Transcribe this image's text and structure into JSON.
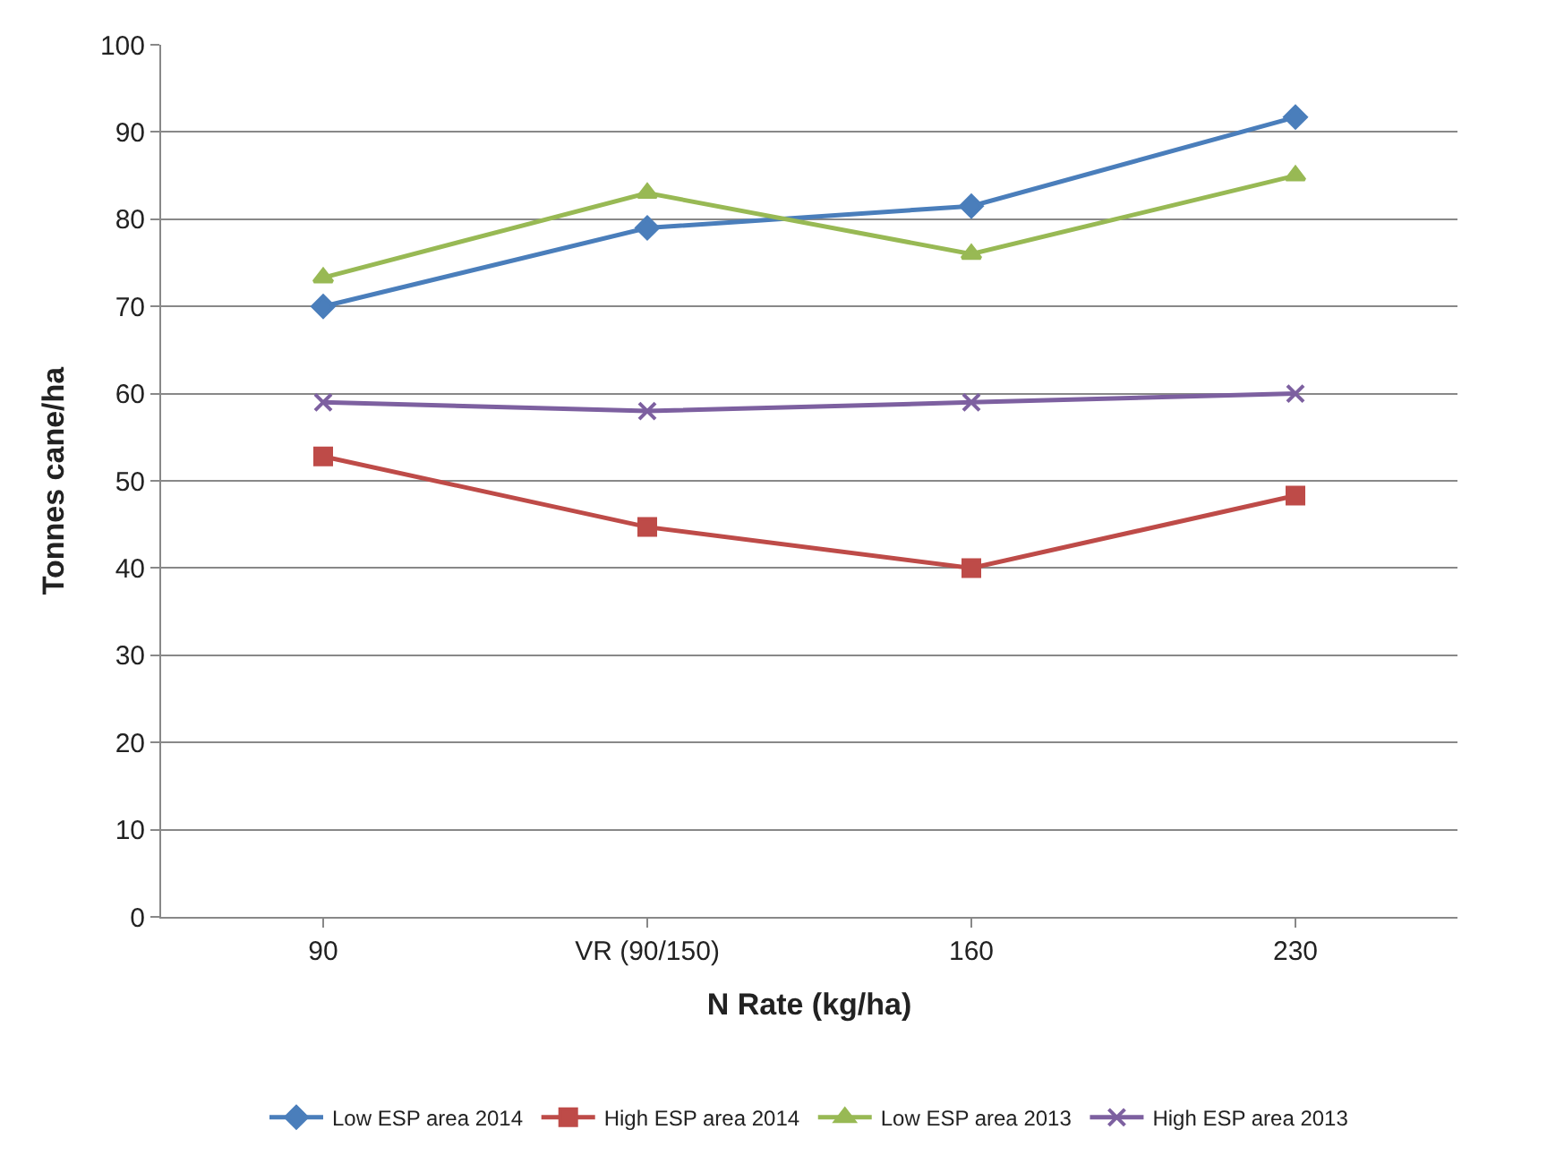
{
  "chart_data": {
    "type": "line",
    "xlabel": "N Rate (kg/ha)",
    "ylabel": "Tonnes cane/ha",
    "categories": [
      "90",
      "VR (90/150)",
      "160",
      "230"
    ],
    "series": [
      {
        "name": "Low ESP area 2014",
        "color": "#4a7ebb",
        "marker": "diamond",
        "values": [
          70,
          79,
          81.5,
          91.7
        ]
      },
      {
        "name": "High ESP area 2014",
        "color": "#be4b48",
        "marker": "square",
        "values": [
          52.8,
          44.7,
          40,
          48.3
        ]
      },
      {
        "name": "Low ESP area 2013",
        "color": "#98b954",
        "marker": "triangle",
        "values": [
          73.3,
          83,
          76,
          85
        ]
      },
      {
        "name": "High ESP area 2013",
        "color": "#7d60a0",
        "marker": "cross",
        "values": [
          59,
          58,
          59,
          60
        ]
      }
    ],
    "ylim": [
      0,
      100
    ],
    "yticks": [
      0,
      10,
      20,
      30,
      40,
      50,
      60,
      70,
      80,
      90,
      100
    ],
    "grid": "y",
    "legend": "bottom",
    "line_style": "solid"
  }
}
